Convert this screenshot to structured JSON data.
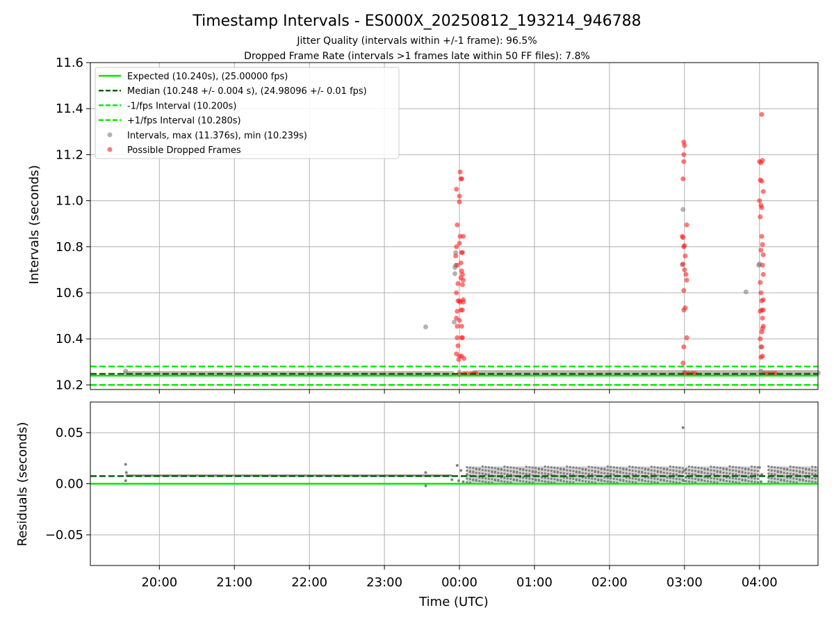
{
  "chart_data": {
    "type": "scatter",
    "title": "Timestamp Intervals - ES000X_20250812_193214_946788",
    "subtitles": [
      "Jitter Quality (intervals within +/-1 frame): 96.5%",
      "Dropped Frame Rate (intervals >1 frames late within 50 FF files): 7.8%"
    ],
    "xlabel": "Time (UTC)",
    "x_ticks": [
      "20:00",
      "21:00",
      "22:00",
      "23:00",
      "00:00",
      "01:00",
      "02:00",
      "03:00",
      "04:00"
    ],
    "x_tick_hours": [
      20,
      21,
      22,
      23,
      24,
      25,
      26,
      27,
      28
    ],
    "x_range_hours": [
      19.08,
      28.78
    ],
    "grid": true,
    "legend_placement": "upper-left",
    "colors": {
      "expected": "#00e600",
      "median": "#006400",
      "interval_band": "#00ee00",
      "intervals": "#808080",
      "dropped": "#ff2020"
    },
    "top": {
      "ylabel": "Intervals (seconds)",
      "ylim": [
        10.18,
        11.6
      ],
      "y_ticks": [
        "10.2",
        "10.4",
        "10.6",
        "10.8",
        "11.0",
        "11.2",
        "11.4",
        "11.6"
      ],
      "y_tick_values": [
        10.2,
        10.4,
        10.6,
        10.8,
        11.0,
        11.2,
        11.4,
        11.6
      ],
      "lines": [
        {
          "name": "Expected (10.240s), (25.00000 fps)",
          "y": 10.24,
          "style": "solid",
          "color": "#00e600"
        },
        {
          "name": "Median (10.248 +/- 0.004 s), (24.98096 +/- 0.01 fps)",
          "y": 10.248,
          "style": "dashed",
          "color": "#006400"
        },
        {
          "name": "-1/fps Interval (10.200s)",
          "y": 10.2,
          "style": "dashed",
          "color": "#00ee00"
        },
        {
          "name": "+1/fps Interval (10.280s)",
          "y": 10.28,
          "style": "dashed",
          "color": "#00ee00"
        }
      ],
      "intervals": {
        "name": "Intervals, max (11.376s), min (10.239s)",
        "baseline_segments": [
          [
            19.55,
            23.9,
            10.248
          ],
          [
            24.2,
            28.78,
            10.252
          ]
        ],
        "outliers": [
          [
            19.55,
            10.26
          ],
          [
            23.55,
            10.452
          ],
          [
            23.93,
            10.473
          ],
          [
            23.94,
            10.71
          ],
          [
            23.94,
            10.683
          ],
          [
            23.95,
            10.72
          ],
          [
            23.95,
            10.775
          ],
          [
            24.0,
            10.255
          ],
          [
            26.98,
            10.962
          ],
          [
            26.97,
            10.722
          ],
          [
            27.0,
            10.255
          ],
          [
            27.82,
            10.604
          ],
          [
            27.99,
            10.72
          ],
          [
            28.0,
            10.725
          ],
          [
            28.02,
            10.365
          ],
          [
            28.02,
            10.26
          ]
        ]
      },
      "dropped": {
        "name": "Possible Dropped Frames",
        "points": [
          [
            23.96,
            11.05
          ],
          [
            23.97,
            10.895
          ],
          [
            23.95,
            10.76
          ],
          [
            23.96,
            10.8
          ],
          [
            23.97,
            10.72
          ],
          [
            23.98,
            10.64
          ],
          [
            23.96,
            10.6
          ],
          [
            23.98,
            10.565
          ],
          [
            23.97,
            10.52
          ],
          [
            23.96,
            10.49
          ],
          [
            23.97,
            10.455
          ],
          [
            23.97,
            10.405
          ],
          [
            23.98,
            10.37
          ],
          [
            23.96,
            10.335
          ],
          [
            23.99,
            10.31
          ],
          [
            24.0,
            11.02
          ],
          [
            24.01,
            11.125
          ],
          [
            24.02,
            11.095
          ],
          [
            24.03,
            11.095
          ],
          [
            24.0,
            10.995
          ],
          [
            24.01,
            10.845
          ],
          [
            24.03,
            10.775
          ],
          [
            24.04,
            10.775
          ],
          [
            24.05,
            10.845
          ],
          [
            24.0,
            10.815
          ],
          [
            24.02,
            10.73
          ],
          [
            24.03,
            10.695
          ],
          [
            24.02,
            10.665
          ],
          [
            24.04,
            10.68
          ],
          [
            24.05,
            10.655
          ],
          [
            24.04,
            10.635
          ],
          [
            24.0,
            10.565
          ],
          [
            24.01,
            10.56
          ],
          [
            24.05,
            10.57
          ],
          [
            24.05,
            10.56
          ],
          [
            24.02,
            10.525
          ],
          [
            24.04,
            10.525
          ],
          [
            24.0,
            10.48
          ],
          [
            24.03,
            10.455
          ],
          [
            24.03,
            10.405
          ],
          [
            24.04,
            10.405
          ],
          [
            24.0,
            10.325
          ],
          [
            24.03,
            10.325
          ],
          [
            24.06,
            10.315
          ],
          [
            24.0,
            10.245
          ],
          [
            24.06,
            10.25
          ],
          [
            24.1,
            10.25
          ],
          [
            24.15,
            10.25
          ],
          [
            24.19,
            10.25
          ],
          [
            24.22,
            10.25
          ],
          [
            26.99,
            11.255
          ],
          [
            27.0,
            11.24
          ],
          [
            26.99,
            11.2
          ],
          [
            26.99,
            11.17
          ],
          [
            26.98,
            11.095
          ],
          [
            27.03,
            10.895
          ],
          [
            26.97,
            10.845
          ],
          [
            26.98,
            10.84
          ],
          [
            26.99,
            10.8
          ],
          [
            27.0,
            10.805
          ],
          [
            27.01,
            10.76
          ],
          [
            26.98,
            10.725
          ],
          [
            27.0,
            10.7
          ],
          [
            27.02,
            10.68
          ],
          [
            27.03,
            10.655
          ],
          [
            26.99,
            10.61
          ],
          [
            26.99,
            10.525
          ],
          [
            27.01,
            10.535
          ],
          [
            27.03,
            10.405
          ],
          [
            26.99,
            10.365
          ],
          [
            26.98,
            10.295
          ],
          [
            27.0,
            10.25
          ],
          [
            27.05,
            10.25
          ],
          [
            27.1,
            10.25
          ],
          [
            27.14,
            10.25
          ],
          [
            28.0,
            11.17
          ],
          [
            28.02,
            11.165
          ],
          [
            28.04,
            11.175
          ],
          [
            28.03,
            11.375
          ],
          [
            28.01,
            11.09
          ],
          [
            28.03,
            11.085
          ],
          [
            28.05,
            11.04
          ],
          [
            28.0,
            11.0
          ],
          [
            28.02,
            10.98
          ],
          [
            28.03,
            10.97
          ],
          [
            28.01,
            10.93
          ],
          [
            28.03,
            10.845
          ],
          [
            28.04,
            10.81
          ],
          [
            28.02,
            10.785
          ],
          [
            28.05,
            10.765
          ],
          [
            28.04,
            10.72
          ],
          [
            28.05,
            10.68
          ],
          [
            28.01,
            10.645
          ],
          [
            28.02,
            10.6
          ],
          [
            28.03,
            10.565
          ],
          [
            28.05,
            10.57
          ],
          [
            28.01,
            10.52
          ],
          [
            28.03,
            10.525
          ],
          [
            28.05,
            10.525
          ],
          [
            28.04,
            10.49
          ],
          [
            28.04,
            10.445
          ],
          [
            28.05,
            10.455
          ],
          [
            28.03,
            10.43
          ],
          [
            28.01,
            10.4
          ],
          [
            28.03,
            10.365
          ],
          [
            28.02,
            10.32
          ],
          [
            28.04,
            10.325
          ],
          [
            28.07,
            10.25
          ],
          [
            28.12,
            10.25
          ],
          [
            28.17,
            10.25
          ],
          [
            28.21,
            10.25
          ]
        ]
      }
    },
    "bottom": {
      "ylabel": "Residuals (seconds)",
      "ylim": [
        -0.08,
        0.08
      ],
      "y_ticks": [
        "−0.05",
        "0.00",
        "0.05"
      ],
      "y_tick_values": [
        -0.05,
        0.0,
        0.05
      ],
      "expected_line": 0.0,
      "median_line": 0.0075,
      "segments": [
        {
          "x": [
            19.55,
            23.9
          ],
          "y": 0.008,
          "spread": 0.001
        },
        {
          "x": [
            24.1,
            26.98
          ],
          "y_low": 0.001,
          "y_high": 0.017
        },
        {
          "x": [
            27.02,
            27.98
          ],
          "y_low": 0.001,
          "y_high": 0.017
        },
        {
          "x": [
            28.12,
            28.78
          ],
          "y_low": 0.001,
          "y_high": 0.017
        }
      ],
      "outliers": [
        [
          19.55,
          0.019
        ],
        [
          19.55,
          0.003
        ],
        [
          19.56,
          0.011
        ],
        [
          23.55,
          -0.002
        ],
        [
          23.55,
          0.011
        ],
        [
          23.9,
          0.004
        ],
        [
          23.97,
          0.018
        ],
        [
          23.99,
          0.003
        ],
        [
          24.02,
          0.013
        ],
        [
          24.05,
          0.002
        ],
        [
          26.98,
          0.055
        ],
        [
          26.99,
          0.003
        ],
        [
          27.0,
          0.013
        ],
        [
          28.0,
          0.016
        ],
        [
          28.02,
          0.002
        ],
        [
          28.03,
          0.009
        ]
      ]
    }
  }
}
